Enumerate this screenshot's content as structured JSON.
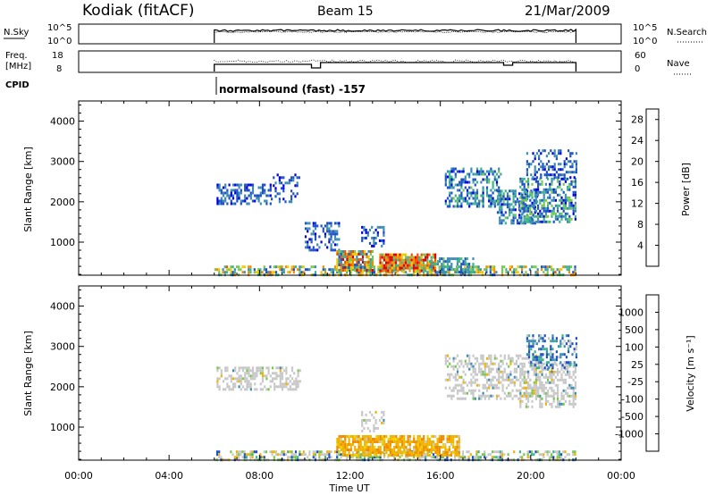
{
  "header": {
    "station": "Kodiak (fitACF)",
    "beam": "Beam 15",
    "date": "21/Mar/2009"
  },
  "panels": {
    "nsky_label": "N.Sky",
    "nsky_ticks": [
      "10^5",
      "10^0"
    ],
    "nsearch_label": "N.Search",
    "nsearch_ticks": [
      "10^5",
      "10^0"
    ],
    "freq_label_line1": "Freq.",
    "freq_label_line2": "[MHz]",
    "freq_ticks": [
      "18",
      "8"
    ],
    "nave_label": "Nave",
    "nave_ticks": [
      "60",
      "0"
    ],
    "cpid_label": "CPID",
    "cpid_text": "normalsound (fast) -157"
  },
  "colors": {
    "power_scale": [
      "#0000e0",
      "#1e50c8",
      "#3c8cb4",
      "#3cb48c",
      "#78c850",
      "#f0c800",
      "#f08c00",
      "#f05000",
      "#e00000"
    ],
    "velocity_scale": [
      "#e00000",
      "#f05000",
      "#f08c00",
      "#f0b400",
      "#f0d200",
      "#c8c8c8",
      "#c8c8c8",
      "#78c850",
      "#3cb48c",
      "#3c8cb4",
      "#1e50c8",
      "#0000e0"
    ]
  },
  "chart_data": [
    {
      "type": "heatmap",
      "name": "power",
      "title": "",
      "xlabel": "",
      "ylabel": "Slant Range [km]",
      "ylim": [
        180,
        4500
      ],
      "yticks": [
        "1000",
        "2000",
        "3000",
        "4000"
      ],
      "yticks_values": [
        1000,
        2000,
        3000,
        4000
      ],
      "colorbar_label": "Power [dB]",
      "colorbar_ticks": [
        "4",
        "8",
        "12",
        "16",
        "20",
        "24",
        "28"
      ],
      "colorbar_range": [
        0,
        30
      ],
      "regions": [
        {
          "t0": 6.0,
          "t1": 22.0,
          "r0": 200,
          "r1": 420,
          "v0": 4,
          "v1": 24,
          "density": 0.55
        },
        {
          "t0": 6.1,
          "t1": 8.5,
          "r0": 1950,
          "r1": 2450,
          "v0": 2,
          "v1": 10,
          "density": 0.55
        },
        {
          "t0": 8.5,
          "t1": 9.8,
          "r0": 2000,
          "r1": 2700,
          "v0": 2,
          "v1": 8,
          "density": 0.25
        },
        {
          "t0": 10.0,
          "t1": 11.5,
          "r0": 800,
          "r1": 1500,
          "v0": 2,
          "v1": 10,
          "density": 0.45
        },
        {
          "t0": 11.4,
          "t1": 13.0,
          "r0": 300,
          "r1": 800,
          "v0": 4,
          "v1": 28,
          "density": 0.8
        },
        {
          "t0": 12.5,
          "t1": 13.5,
          "r0": 900,
          "r1": 1400,
          "v0": 2,
          "v1": 10,
          "density": 0.4
        },
        {
          "t0": 13.3,
          "t1": 15.8,
          "r0": 320,
          "r1": 720,
          "v0": 10,
          "v1": 30,
          "density": 0.9
        },
        {
          "t0": 15.5,
          "t1": 17.5,
          "r0": 280,
          "r1": 620,
          "v0": 4,
          "v1": 14,
          "density": 0.55
        },
        {
          "t0": 16.2,
          "t1": 18.7,
          "r0": 1900,
          "r1": 2850,
          "v0": 2,
          "v1": 14,
          "density": 0.5
        },
        {
          "t0": 18.5,
          "t1": 20.3,
          "r0": 1500,
          "r1": 2300,
          "v0": 2,
          "v1": 14,
          "density": 0.5
        },
        {
          "t0": 19.5,
          "t1": 22.0,
          "r0": 1500,
          "r1": 2600,
          "v0": 2,
          "v1": 16,
          "density": 0.55
        },
        {
          "t0": 19.8,
          "t1": 22.0,
          "r0": 2600,
          "r1": 3300,
          "v0": 2,
          "v1": 10,
          "density": 0.4
        }
      ]
    },
    {
      "type": "heatmap",
      "name": "velocity",
      "title": "",
      "xlabel": "Time UT",
      "ylabel": "Slant Range [km]",
      "ylim": [
        180,
        4500
      ],
      "yticks": [
        "1000",
        "2000",
        "3000",
        "4000"
      ],
      "yticks_values": [
        1000,
        2000,
        3000,
        4000
      ],
      "xticks": [
        "00:00",
        "04:00",
        "08:00",
        "12:00",
        "16:00",
        "20:00",
        "00:00"
      ],
      "xticks_values": [
        0,
        4,
        8,
        12,
        16,
        20,
        24
      ],
      "xlim": [
        0,
        24
      ],
      "colorbar_label": "Velocity [m s⁻¹]",
      "colorbar_ticks": [
        "1000",
        "500",
        "100",
        "25",
        "-25",
        "-100",
        "-500",
        "-1000"
      ],
      "regions": [
        {
          "t0": 6.0,
          "t1": 22.0,
          "r0": 200,
          "r1": 420,
          "kind": "ground",
          "density": 0.5
        },
        {
          "t0": 6.1,
          "t1": 9.8,
          "r0": 1950,
          "r1": 2500,
          "kind": "grey",
          "density": 0.5
        },
        {
          "t0": 11.4,
          "t1": 16.8,
          "r0": 300,
          "r1": 800,
          "kind": "orange",
          "density": 0.8
        },
        {
          "t0": 12.5,
          "t1": 13.5,
          "r0": 900,
          "r1": 1400,
          "kind": "grey",
          "density": 0.4
        },
        {
          "t0": 16.2,
          "t1": 20.5,
          "r0": 1700,
          "r1": 2800,
          "kind": "grey",
          "density": 0.45
        },
        {
          "t0": 19.5,
          "t1": 22.0,
          "r0": 1500,
          "r1": 2600,
          "kind": "grey",
          "density": 0.5
        },
        {
          "t0": 19.8,
          "t1": 22.0,
          "r0": 2500,
          "r1": 3300,
          "kind": "blue",
          "density": 0.4
        }
      ]
    }
  ]
}
